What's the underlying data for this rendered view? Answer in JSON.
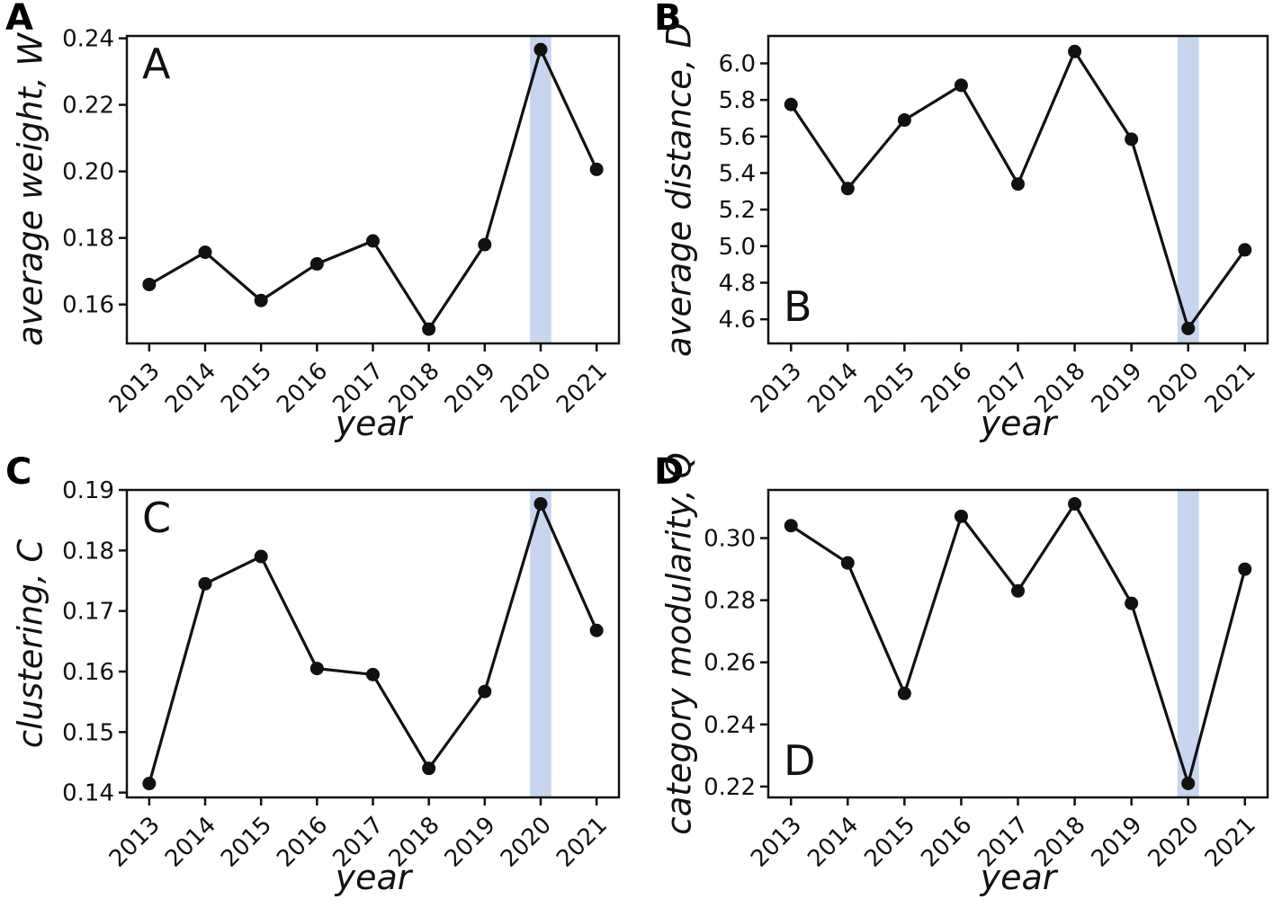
{
  "figure": {
    "background_color": "#ffffff",
    "axis_color": "#111111",
    "line_color": "#111111",
    "marker_color": "#111111",
    "highlight_band_color": "#c8d5ee"
  },
  "chart_data": [
    {
      "id": "A",
      "type": "line",
      "outer_label": "A",
      "inner_label": "A",
      "inner_label_position": "top-left",
      "xlabel": "year",
      "ylabel": "average weight, W",
      "ylabel_prefix": "average weight, ",
      "ylabel_symbol": "W",
      "x": [
        2013,
        2014,
        2015,
        2016,
        2017,
        2018,
        2019,
        2020,
        2021
      ],
      "xtick_labels": [
        "2013",
        "2014",
        "2015",
        "2016",
        "2017",
        "2018",
        "2019",
        "2020",
        "2021"
      ],
      "values": [
        0.166,
        0.1757,
        0.1612,
        0.1722,
        0.1791,
        0.1526,
        0.178,
        0.2366,
        0.2006
      ],
      "yticks": [
        0.16,
        0.18,
        0.2,
        0.22,
        0.24
      ],
      "ytick_labels": [
        "0.16",
        "0.18",
        "0.20",
        "0.22",
        "0.24"
      ],
      "ylim": [
        0.1483,
        0.2407
      ],
      "xlim": [
        2012.6,
        2021.4
      ],
      "grid": false,
      "legend": null,
      "highlight_band": {
        "x_start": 2019.81,
        "x_end": 2020.19,
        "color": "#c8d5ee"
      },
      "line_color": "#111111",
      "marker_color": "#111111"
    },
    {
      "id": "B",
      "type": "line",
      "outer_label": "B",
      "inner_label": "B",
      "inner_label_position": "bottom-left",
      "xlabel": "year",
      "ylabel": "average distance, D",
      "ylabel_prefix": "average distance, ",
      "ylabel_symbol": "D",
      "x": [
        2013,
        2014,
        2015,
        2016,
        2017,
        2018,
        2019,
        2020,
        2021
      ],
      "xtick_labels": [
        "2013",
        "2014",
        "2015",
        "2016",
        "2017",
        "2018",
        "2019",
        "2020",
        "2021"
      ],
      "values": [
        5.775,
        5.315,
        5.69,
        5.88,
        5.34,
        6.065,
        5.585,
        4.55,
        4.98
      ],
      "yticks": [
        4.6,
        4.8,
        5.0,
        5.2,
        5.4,
        5.6,
        5.8,
        6.0
      ],
      "ytick_labels": [
        "4.6",
        "4.8",
        "5.0",
        "5.2",
        "5.4",
        "5.6",
        "5.8",
        "6.0"
      ],
      "ylim": [
        4.468,
        6.15
      ],
      "xlim": [
        2012.6,
        2021.4
      ],
      "grid": false,
      "legend": null,
      "highlight_band": {
        "x_start": 2019.81,
        "x_end": 2020.19,
        "color": "#c8d5ee"
      },
      "line_color": "#111111",
      "marker_color": "#111111"
    },
    {
      "id": "C",
      "type": "line",
      "outer_label": "C",
      "inner_label": "C",
      "inner_label_position": "top-left",
      "xlabel": "year",
      "ylabel": "clustering, C",
      "ylabel_prefix": "clustering, ",
      "ylabel_symbol": "C",
      "x": [
        2013,
        2014,
        2015,
        2016,
        2017,
        2018,
        2019,
        2020,
        2021
      ],
      "xtick_labels": [
        "2013",
        "2014",
        "2015",
        "2016",
        "2017",
        "2018",
        "2019",
        "2020",
        "2021"
      ],
      "values": [
        0.1415,
        0.1745,
        0.179,
        0.1605,
        0.1595,
        0.144,
        0.1567,
        0.1877,
        0.1668
      ],
      "yticks": [
        0.14,
        0.15,
        0.16,
        0.17,
        0.18,
        0.19
      ],
      "ytick_labels": [
        "0.14",
        "0.15",
        "0.16",
        "0.17",
        "0.18",
        "0.19"
      ],
      "ylim": [
        0.1392,
        0.19
      ],
      "xlim": [
        2012.6,
        2021.4
      ],
      "grid": false,
      "legend": null,
      "highlight_band": {
        "x_start": 2019.81,
        "x_end": 2020.19,
        "color": "#c8d5ee"
      },
      "line_color": "#111111",
      "marker_color": "#111111"
    },
    {
      "id": "D",
      "type": "line",
      "outer_label": "D",
      "inner_label": "D",
      "inner_label_position": "bottom-left",
      "xlabel": "year",
      "ylabel": "category modularity, Q",
      "ylabel_prefix": "category modularity, ",
      "ylabel_symbol": "Q",
      "x": [
        2013,
        2014,
        2015,
        2016,
        2017,
        2018,
        2019,
        2020,
        2021
      ],
      "xtick_labels": [
        "2013",
        "2014",
        "2015",
        "2016",
        "2017",
        "2018",
        "2019",
        "2020",
        "2021"
      ],
      "values": [
        0.304,
        0.292,
        0.25,
        0.307,
        0.283,
        0.311,
        0.279,
        0.221,
        0.29
      ],
      "yticks": [
        0.22,
        0.24,
        0.26,
        0.28,
        0.3
      ],
      "ytick_labels": [
        "0.22",
        "0.24",
        "0.26",
        "0.28",
        "0.30"
      ],
      "ylim": [
        0.2165,
        0.3155
      ],
      "xlim": [
        2012.6,
        2021.4
      ],
      "grid": false,
      "legend": null,
      "highlight_band": {
        "x_start": 2019.81,
        "x_end": 2020.19,
        "color": "#c8d5ee"
      },
      "line_color": "#111111",
      "marker_color": "#111111"
    }
  ]
}
